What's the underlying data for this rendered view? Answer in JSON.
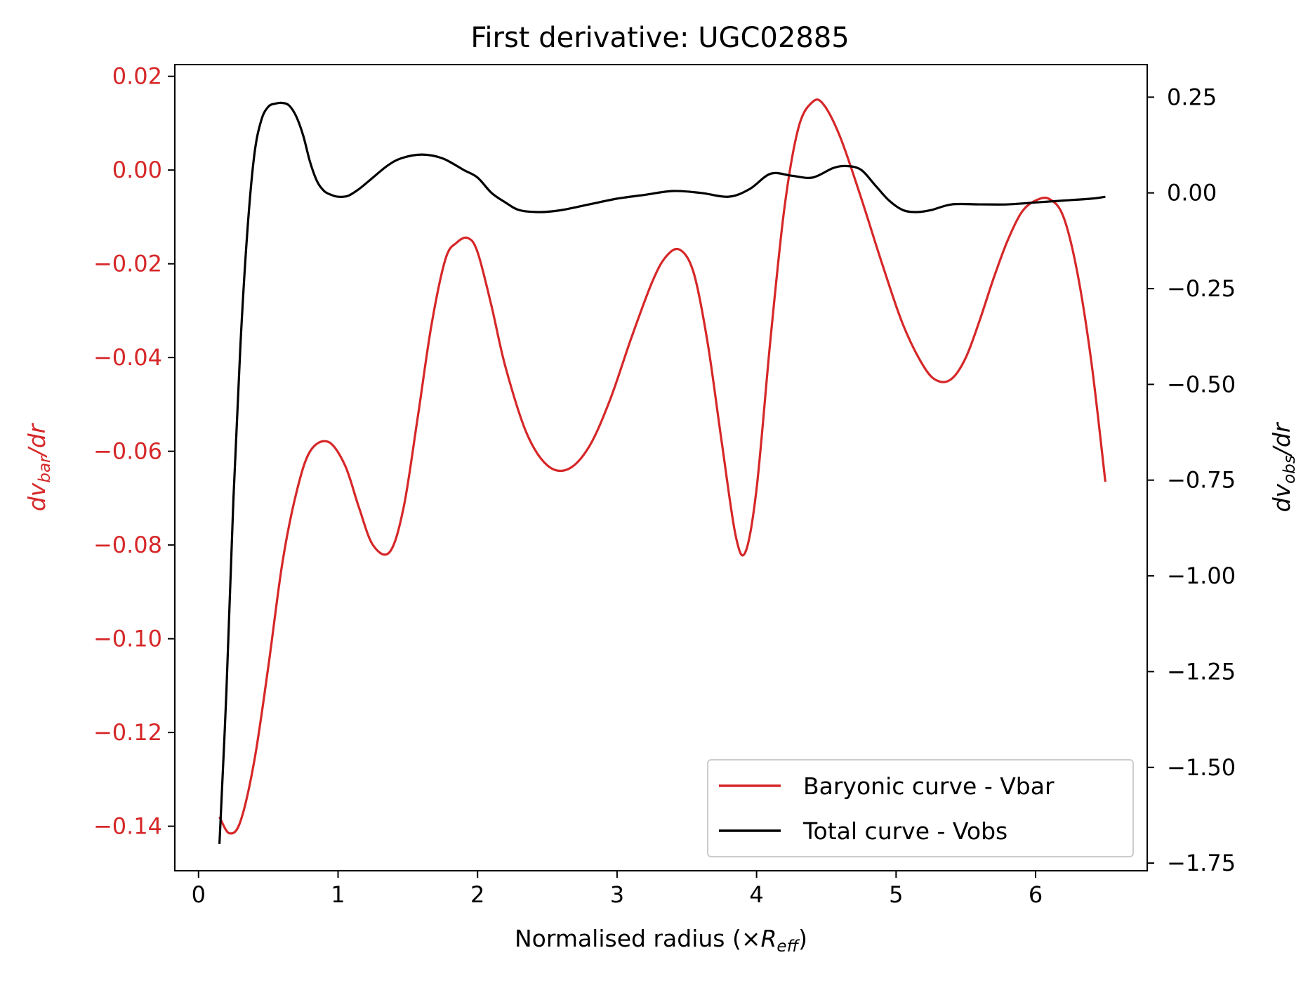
{
  "chart_data": {
    "type": "line",
    "title": "First derivative: UGC02885",
    "xlabel": {
      "prefix": "Normalised radius (×",
      "var": "R",
      "sub": "eff",
      "suffix": ")"
    },
    "ylabel_left": {
      "pre": "dv",
      "sub": "bar",
      "post": "/dr",
      "color": "#d62728"
    },
    "ylabel_right": {
      "pre": "dv",
      "sub": "obs",
      "post": "/dr",
      "color": "#000000"
    },
    "xlim": [
      -0.17,
      6.8
    ],
    "ylim_left": [
      -0.1495,
      0.0225
    ],
    "ylim_right": [
      -1.77,
      0.335
    ],
    "x_ticks": [
      0,
      1,
      2,
      3,
      4,
      5,
      6
    ],
    "x_tick_labels": [
      "0",
      "1",
      "2",
      "3",
      "4",
      "5",
      "6"
    ],
    "y_left_ticks": [
      0.02,
      0.0,
      -0.02,
      -0.04,
      -0.06,
      -0.08,
      -0.1,
      -0.12,
      -0.14
    ],
    "y_left_tick_labels": [
      "0.02",
      "0.00",
      "−0.02",
      "−0.04",
      "−0.06",
      "−0.08",
      "−0.10",
      "−0.12",
      "−0.14"
    ],
    "y_right_ticks": [
      0.25,
      0.0,
      -0.25,
      -0.5,
      -0.75,
      -1.0,
      -1.25,
      -1.5,
      -1.75
    ],
    "y_right_tick_labels": [
      "0.25",
      "0.00",
      "−0.25",
      "−0.50",
      "−0.75",
      "−1.00",
      "−1.25",
      "−1.50",
      "−1.75"
    ],
    "legend": {
      "position": "lower-right",
      "entries": [
        "Baryonic curve - Vbar",
        "Total curve - Vobs"
      ]
    },
    "series": [
      {
        "name": "Baryonic curve - Vbar",
        "axis": "left",
        "color": "#d62728",
        "x": [
          0.15,
          0.22,
          0.3,
          0.4,
          0.5,
          0.6,
          0.7,
          0.8,
          0.93,
          1.05,
          1.15,
          1.25,
          1.37,
          1.47,
          1.57,
          1.67,
          1.77,
          1.85,
          1.93,
          2.0,
          2.1,
          2.2,
          2.35,
          2.5,
          2.65,
          2.8,
          2.95,
          3.1,
          3.25,
          3.35,
          3.45,
          3.55,
          3.65,
          3.75,
          3.85,
          3.92,
          4.0,
          4.1,
          4.2,
          4.3,
          4.4,
          4.48,
          4.6,
          4.75,
          4.9,
          5.05,
          5.2,
          5.3,
          5.4,
          5.5,
          5.6,
          5.7,
          5.8,
          5.9,
          6.0,
          6.1,
          6.2,
          6.3,
          6.4,
          6.5
        ],
        "y": [
          -0.138,
          -0.1415,
          -0.139,
          -0.126,
          -0.106,
          -0.084,
          -0.069,
          -0.06,
          -0.058,
          -0.063,
          -0.072,
          -0.08,
          -0.0815,
          -0.072,
          -0.053,
          -0.033,
          -0.019,
          -0.0155,
          -0.0145,
          -0.0175,
          -0.029,
          -0.042,
          -0.056,
          -0.063,
          -0.0638,
          -0.059,
          -0.049,
          -0.036,
          -0.024,
          -0.0185,
          -0.017,
          -0.022,
          -0.037,
          -0.058,
          -0.078,
          -0.0815,
          -0.068,
          -0.036,
          -0.008,
          0.009,
          0.0145,
          0.014,
          0.007,
          -0.006,
          -0.02,
          -0.033,
          -0.042,
          -0.045,
          -0.0445,
          -0.04,
          -0.032,
          -0.023,
          -0.015,
          -0.009,
          -0.0065,
          -0.0062,
          -0.01,
          -0.022,
          -0.041,
          -0.0665
        ]
      },
      {
        "name": "Total curve - Vobs",
        "axis": "right",
        "color": "#000000",
        "x": [
          0.15,
          0.2,
          0.25,
          0.3,
          0.35,
          0.4,
          0.45,
          0.5,
          0.55,
          0.6,
          0.65,
          0.7,
          0.75,
          0.8,
          0.85,
          0.9,
          0.95,
          1.0,
          1.07,
          1.15,
          1.25,
          1.35,
          1.45,
          1.6,
          1.75,
          1.9,
          2.0,
          2.1,
          2.2,
          2.3,
          2.45,
          2.6,
          2.8,
          3.0,
          3.2,
          3.4,
          3.6,
          3.8,
          3.95,
          4.1,
          4.25,
          4.4,
          4.55,
          4.65,
          4.75,
          4.85,
          4.95,
          5.05,
          5.15,
          5.25,
          5.4,
          5.6,
          5.8,
          6.0,
          6.2,
          6.4,
          6.5
        ],
        "y": [
          -1.7,
          -1.3,
          -0.8,
          -0.4,
          -0.1,
          0.1,
          0.19,
          0.225,
          0.233,
          0.235,
          0.228,
          0.2,
          0.15,
          0.08,
          0.03,
          0.005,
          -0.005,
          -0.01,
          -0.008,
          0.01,
          0.04,
          0.07,
          0.09,
          0.1,
          0.09,
          0.06,
          0.04,
          0.0,
          -0.025,
          -0.045,
          -0.05,
          -0.045,
          -0.03,
          -0.015,
          -0.005,
          0.005,
          0.0,
          -0.01,
          0.01,
          0.05,
          0.045,
          0.04,
          0.065,
          0.07,
          0.06,
          0.02,
          -0.02,
          -0.045,
          -0.05,
          -0.045,
          -0.03,
          -0.03,
          -0.03,
          -0.025,
          -0.02,
          -0.015,
          -0.01
        ]
      }
    ]
  }
}
